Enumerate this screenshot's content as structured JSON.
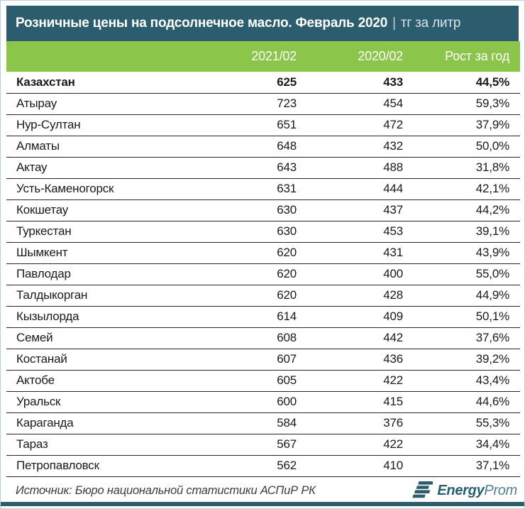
{
  "colors": {
    "header_teal": "#2c5d6e",
    "header_green": "#8bc64b",
    "logo_teal_bold": "#26606f",
    "logo_teal_light": "#4f8292"
  },
  "titlebar": {
    "separator": "|"
  },
  "footer": {
    "source": "Источник: Бюро национальной статистики АСПиР РК",
    "logo_bold": "Energy",
    "logo_light": "Prom"
  },
  "chart_data": {
    "type": "table",
    "title": "Розничные цены на подсолнечное масло. Февраль 2020",
    "unit": "тг за литр",
    "columns": [
      "",
      "2021/02",
      "2020/02",
      "Рост за год"
    ],
    "rows": [
      {
        "region": "Казахстан",
        "price_2021_02": 625,
        "price_2020_02": 433,
        "growth": "44,5%",
        "bold": true
      },
      {
        "region": "Атырау",
        "price_2021_02": 723,
        "price_2020_02": 454,
        "growth": "59,3%"
      },
      {
        "region": "Нур-Султан",
        "price_2021_02": 651,
        "price_2020_02": 472,
        "growth": "37,9%"
      },
      {
        "region": "Алматы",
        "price_2021_02": 648,
        "price_2020_02": 432,
        "growth": "50,0%"
      },
      {
        "region": "Актау",
        "price_2021_02": 643,
        "price_2020_02": 488,
        "growth": "31,8%"
      },
      {
        "region": "Усть-Каменогорск",
        "price_2021_02": 631,
        "price_2020_02": 444,
        "growth": "42,1%"
      },
      {
        "region": "Кокшетау",
        "price_2021_02": 630,
        "price_2020_02": 437,
        "growth": "44,2%"
      },
      {
        "region": "Туркестан",
        "price_2021_02": 630,
        "price_2020_02": 453,
        "growth": "39,1%"
      },
      {
        "region": "Шымкент",
        "price_2021_02": 620,
        "price_2020_02": 431,
        "growth": "43,9%"
      },
      {
        "region": "Павлодар",
        "price_2021_02": 620,
        "price_2020_02": 400,
        "growth": "55,0%"
      },
      {
        "region": "Талдыкорган",
        "price_2021_02": 620,
        "price_2020_02": 428,
        "growth": "44,9%"
      },
      {
        "region": "Кызылорда",
        "price_2021_02": 614,
        "price_2020_02": 409,
        "growth": "50,1%"
      },
      {
        "region": "Семей",
        "price_2021_02": 608,
        "price_2020_02": 442,
        "growth": "37,6%"
      },
      {
        "region": "Костанай",
        "price_2021_02": 607,
        "price_2020_02": 436,
        "growth": "39,2%"
      },
      {
        "region": "Актобе",
        "price_2021_02": 605,
        "price_2020_02": 422,
        "growth": "43,4%"
      },
      {
        "region": "Уральск",
        "price_2021_02": 600,
        "price_2020_02": 415,
        "growth": "44,6%"
      },
      {
        "region": "Караганда",
        "price_2021_02": 584,
        "price_2020_02": 376,
        "growth": "55,3%"
      },
      {
        "region": "Тараз",
        "price_2021_02": 567,
        "price_2020_02": 422,
        "growth": "34,4%"
      },
      {
        "region": "Петропавловск",
        "price_2021_02": 562,
        "price_2020_02": 410,
        "growth": "37,1%"
      }
    ]
  }
}
